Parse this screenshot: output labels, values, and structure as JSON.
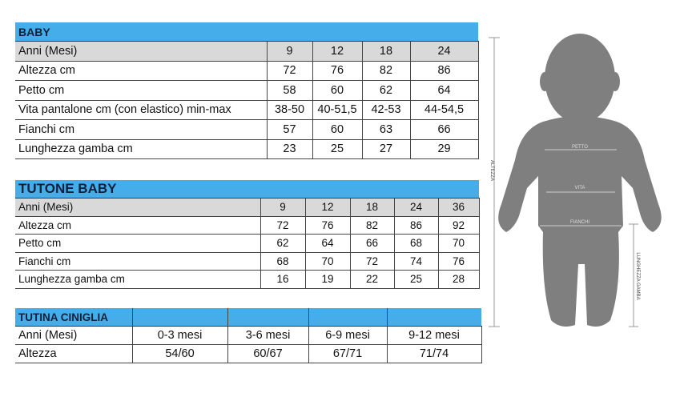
{
  "baby": {
    "title": "BABY",
    "header": {
      "label": "Anni (Mesi)",
      "values": [
        "9",
        "12",
        "18",
        "24"
      ]
    },
    "rows": [
      {
        "label": "Altezza cm",
        "values": [
          "72",
          "76",
          "82",
          "86"
        ]
      },
      {
        "label": "Petto cm",
        "values": [
          "58",
          "60",
          "62",
          "64"
        ]
      },
      {
        "label": "Vita pantalone cm (con elastico) min-max",
        "values": [
          "38-50",
          "40-51,5",
          "42-53",
          "44-54,5"
        ]
      },
      {
        "label": "Fianchi cm",
        "values": [
          "57",
          "60",
          "63",
          "66"
        ]
      },
      {
        "label": "Lunghezza gamba cm",
        "values": [
          "23",
          "25",
          "27",
          "29"
        ]
      }
    ]
  },
  "tutone_baby": {
    "title": "TUTONE BABY",
    "header": {
      "label": "Anni (Mesi)",
      "values": [
        "9",
        "12",
        "18",
        "24",
        "36"
      ]
    },
    "rows": [
      {
        "label": "Altezza cm",
        "values": [
          "72",
          "76",
          "82",
          "86",
          "92"
        ]
      },
      {
        "label": "Petto cm",
        "values": [
          "62",
          "64",
          "66",
          "68",
          "70"
        ]
      },
      {
        "label": "Fianchi cm",
        "values": [
          "68",
          "70",
          "72",
          "74",
          "76"
        ]
      },
      {
        "label": "Lunghezza gamba cm",
        "values": [
          "16",
          "19",
          "22",
          "25",
          "28"
        ]
      }
    ]
  },
  "tutina_ciniglia": {
    "title": "TUTINA CINIGLIA",
    "header": {
      "label": "Anni (Mesi)",
      "values": [
        "0-3 mesi",
        "3-6 mesi",
        "6-9 mesi",
        "9-12 mesi"
      ]
    },
    "rows": [
      {
        "label": "Altezza",
        "values": [
          "54/60",
          "60/67",
          "67/71",
          "71/74"
        ]
      }
    ]
  },
  "figure": {
    "labels": {
      "height": "ALTEZZA",
      "chest": "PETTO",
      "waist": "VITA",
      "hips": "FIANCHI",
      "leg": "LUNGHEZZA GAMBA"
    }
  },
  "colors": {
    "header_blue": "#45aeea",
    "row_gray": "#d9d9d9",
    "silhouette": "#7f7f7f"
  }
}
